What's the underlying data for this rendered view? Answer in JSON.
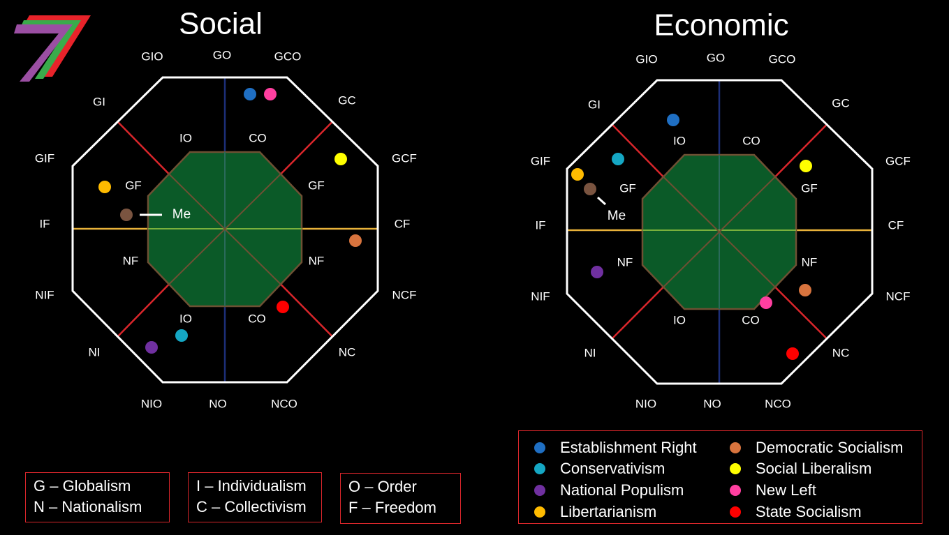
{
  "colors": {
    "background": "#000000",
    "octagon_border": "#ffffff",
    "diagonal_red": "#d9262b",
    "vertical_axis": "#1c2e78",
    "horizontal_axis": "#e8b23a",
    "center_fill": "#0b5a28",
    "center_border": "#6e5033",
    "center_vertical": "#2a6a5a",
    "center_horizontal": "#7ab03c",
    "center_diagonal": "#6e5033",
    "me_dot": "#7a5440"
  },
  "logo": {
    "name": "stripe-7-logo",
    "stripes": [
      "#e8232a",
      "#3aab4b",
      "#9b4fa3"
    ]
  },
  "charts": [
    {
      "id": "social",
      "title": "Social",
      "outer_labels": [
        "GIO",
        "GO",
        "GCO",
        "GC",
        "GCF",
        "CF",
        "NCF",
        "NC",
        "NCO",
        "NO",
        "NIO",
        "NI",
        "NIF",
        "IF",
        "GIF",
        "GI"
      ],
      "inner_labels": [
        "IO",
        "CO",
        "GF",
        "GF",
        "NF",
        "NF",
        "IO",
        "CO"
      ],
      "me_label": "Me",
      "dots": [
        {
          "ideology": "establishment_right",
          "color": "#1f6fc3"
        },
        {
          "ideology": "new_left",
          "color": "#ff3fa0"
        },
        {
          "ideology": "social_liberalism",
          "color": "#ffff00"
        },
        {
          "ideology": "libertarianism",
          "color": "#ffbb00"
        },
        {
          "ideology": "me",
          "color": "#7a5440"
        },
        {
          "ideology": "democratic_socialism",
          "color": "#d8743e"
        },
        {
          "ideology": "state_socialism",
          "color": "#ff0000"
        },
        {
          "ideology": "conservativism",
          "color": "#15a7c4"
        },
        {
          "ideology": "national_populism",
          "color": "#7030a0"
        }
      ]
    },
    {
      "id": "economic",
      "title": "Economic",
      "outer_labels": [
        "GIO",
        "GO",
        "GCO",
        "GC",
        "GCF",
        "CF",
        "NCF",
        "NC",
        "NCO",
        "NO",
        "NIO",
        "NI",
        "NIF",
        "IF",
        "GIF",
        "GI"
      ],
      "inner_labels": [
        "IO",
        "CO",
        "GF",
        "GF",
        "NF",
        "NF",
        "IO",
        "CO"
      ],
      "me_label": "Me",
      "dots": [
        {
          "ideology": "establishment_right",
          "color": "#1f6fc3"
        },
        {
          "ideology": "conservativism",
          "color": "#15a7c4"
        },
        {
          "ideology": "libertarianism",
          "color": "#ffbb00"
        },
        {
          "ideology": "me",
          "color": "#7a5440"
        },
        {
          "ideology": "social_liberalism",
          "color": "#ffff00"
        },
        {
          "ideology": "national_populism",
          "color": "#7030a0"
        },
        {
          "ideology": "democratic_socialism",
          "color": "#d8743e"
        },
        {
          "ideology": "new_left",
          "color": "#ff3fa0"
        },
        {
          "ideology": "state_socialism",
          "color": "#ff0000"
        }
      ]
    }
  ],
  "key_boxes": [
    {
      "line1": "G – Globalism",
      "line2": "N – Nationalism"
    },
    {
      "line1": "I – Individualism",
      "line2": "C – Collectivism"
    },
    {
      "line1": "O – Order",
      "line2": "F – Freedom"
    }
  ],
  "legend": {
    "items": [
      {
        "label": "Establishment Right",
        "color": "#1f6fc3"
      },
      {
        "label": "Conservativism",
        "color": "#15a7c4"
      },
      {
        "label": "National Populism",
        "color": "#7030a0"
      },
      {
        "label": "Libertarianism",
        "color": "#ffbb00"
      },
      {
        "label": "Democratic Socialism",
        "color": "#d8743e"
      },
      {
        "label": "Social Liberalism",
        "color": "#ffff00"
      },
      {
        "label": "New Left",
        "color": "#ff3fa0"
      },
      {
        "label": "State Socialism",
        "color": "#ff0000"
      }
    ]
  }
}
